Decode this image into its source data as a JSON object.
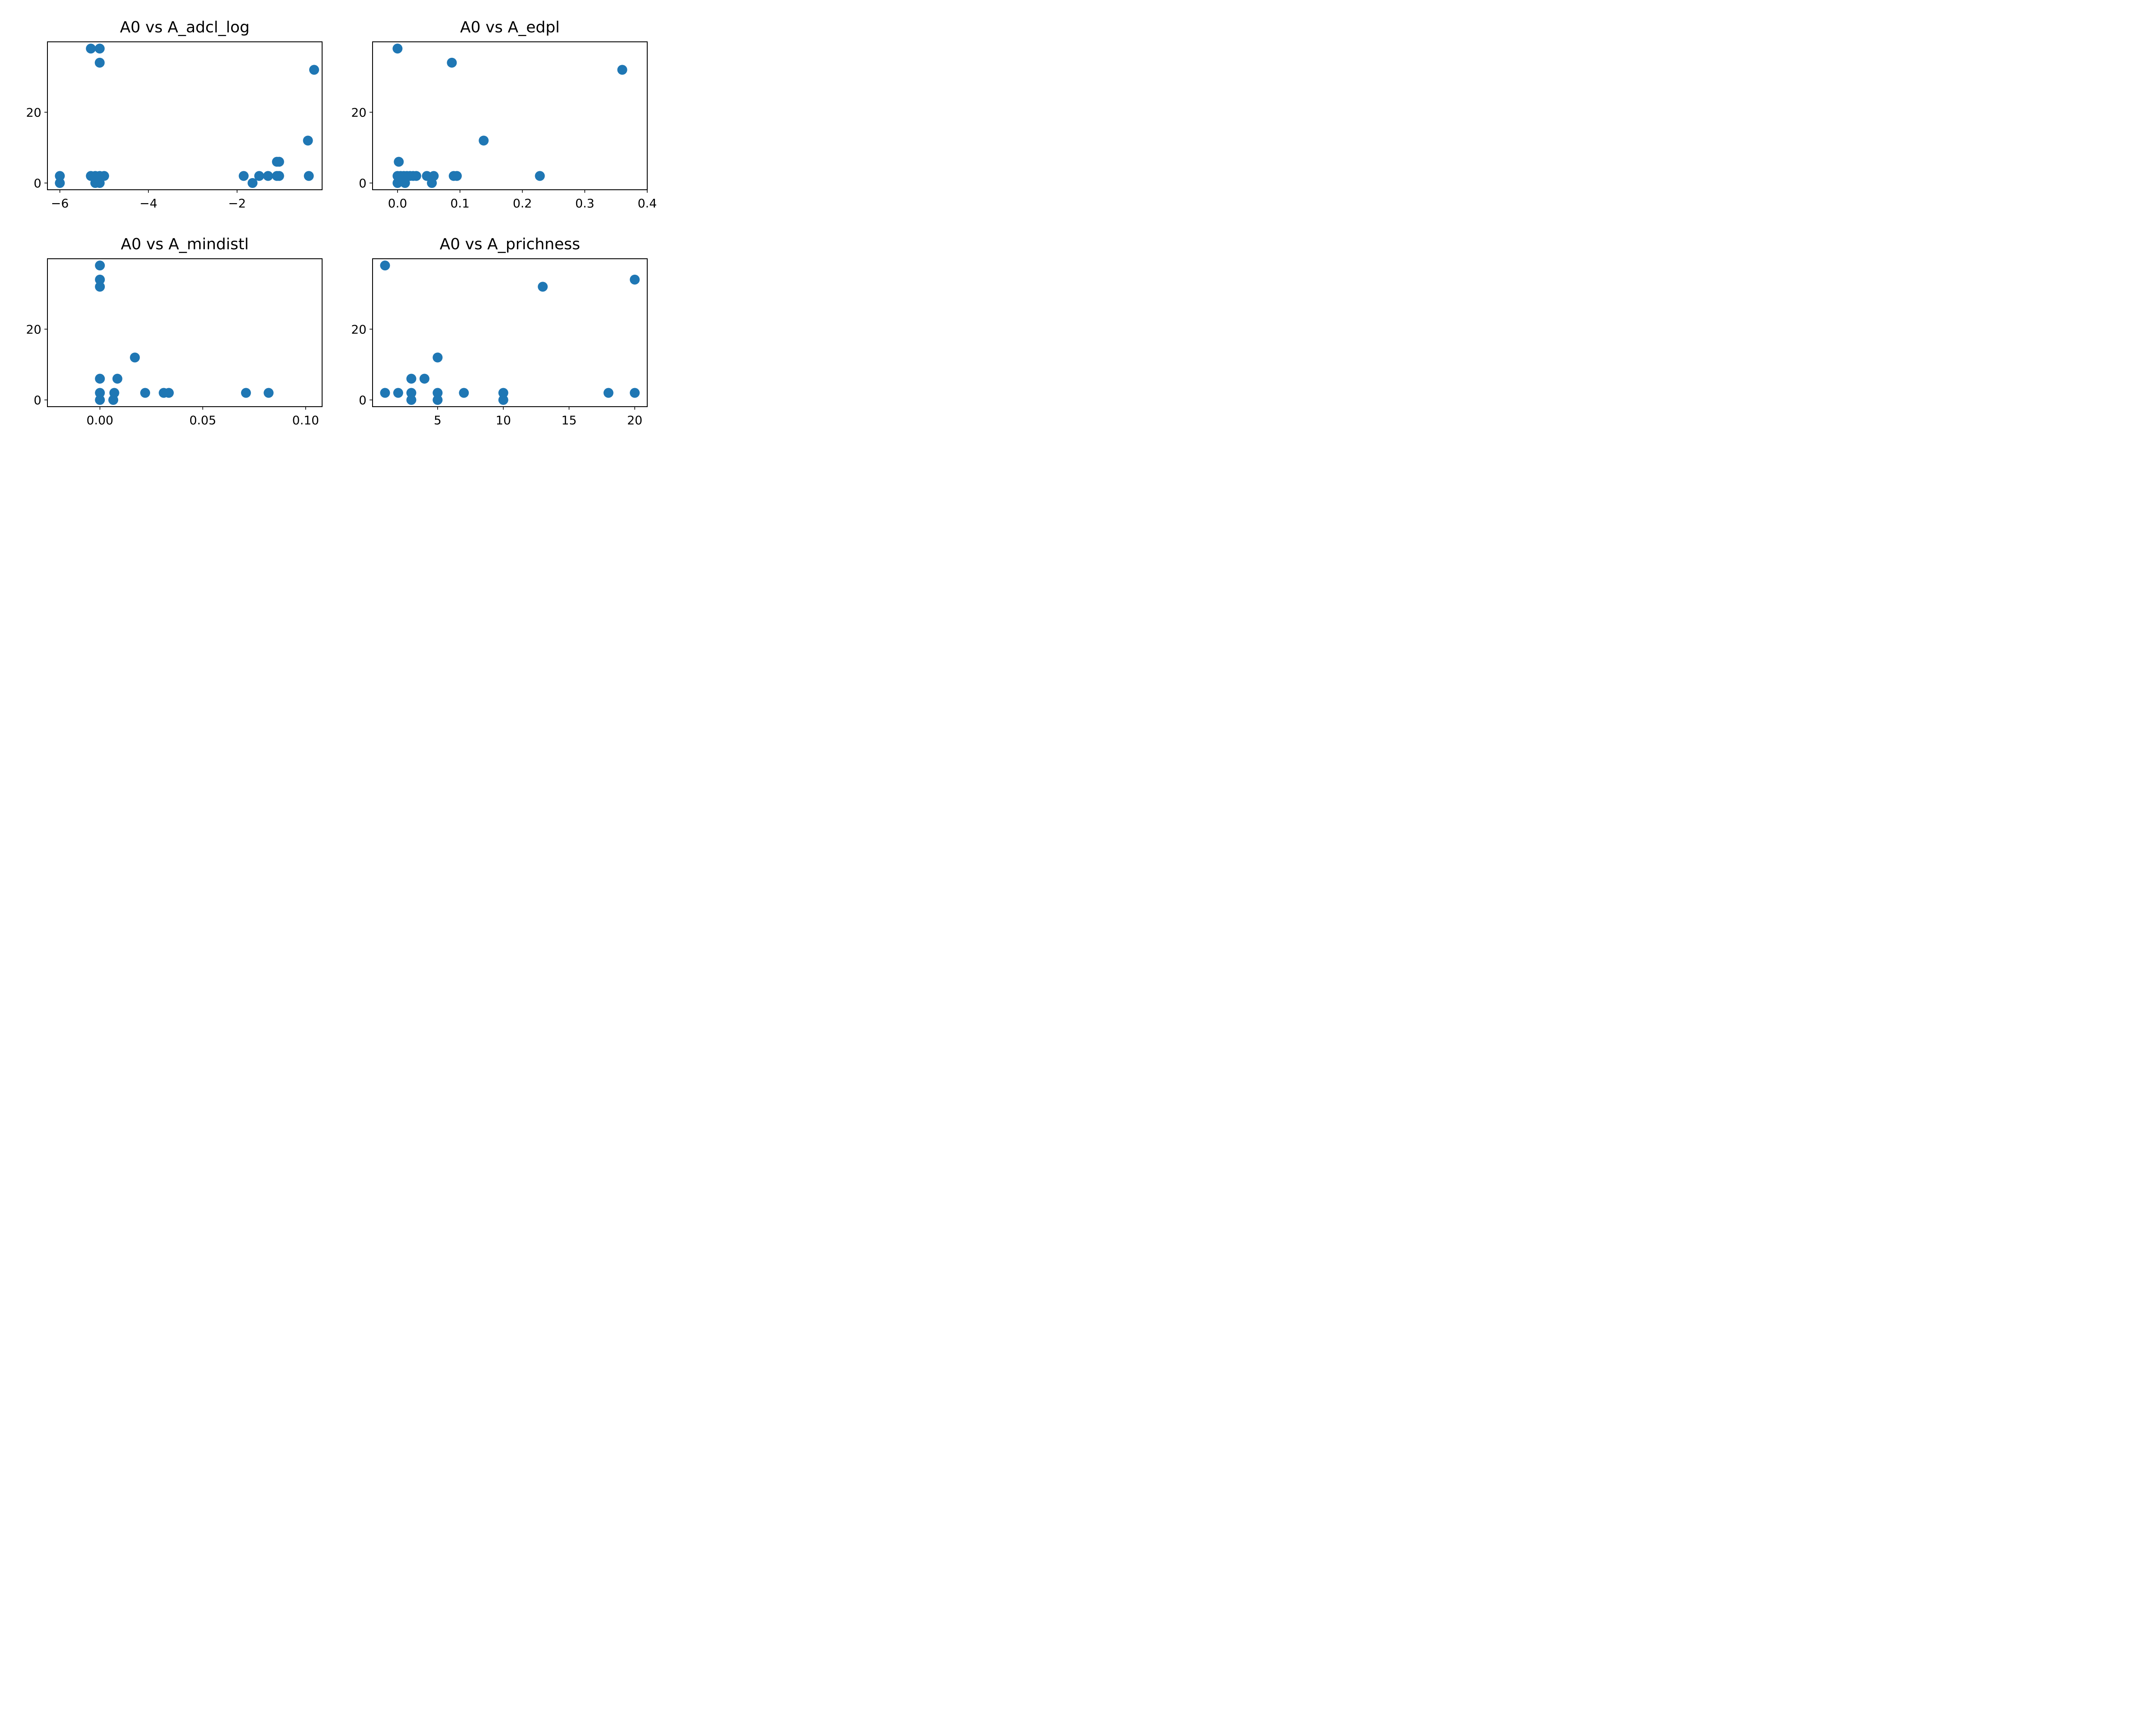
{
  "figure": {
    "background": "#ffffff"
  },
  "chart_data": [
    {
      "type": "scatter",
      "title": "A0 vs A_adcl_log",
      "xlabel": "",
      "ylabel": "",
      "color": "#1f77b4",
      "grid": false,
      "xlim": [
        -6.28,
        -0.08
      ],
      "ylim": [
        -1.9,
        39.9
      ],
      "xticks": [
        -6,
        -4,
        -2
      ],
      "xtick_labels": [
        "−6",
        "−4",
        "−2"
      ],
      "yticks": [
        0,
        20
      ],
      "ytick_labels": [
        "0",
        "20"
      ],
      "x": [
        -5.3,
        -5.1,
        -5.1,
        -0.26,
        -0.4,
        -1.1,
        -1.05,
        -0.38,
        -6.0,
        -6.0,
        -5.3,
        -5.2,
        -5.1,
        -5.0,
        -5.2,
        -5.1,
        -1.85,
        -1.65,
        -1.5,
        -1.3,
        -1.1,
        -1.05
      ],
      "y": [
        38,
        38,
        34,
        32,
        12,
        6,
        6,
        2,
        2,
        0,
        2,
        2,
        2,
        2,
        0,
        0,
        2,
        0,
        2,
        2,
        2,
        2
      ]
    },
    {
      "type": "scatter",
      "title": "A0 vs A_edpl",
      "xlabel": "",
      "ylabel": "",
      "color": "#1f77b4",
      "grid": false,
      "xlim": [
        -0.04,
        0.4
      ],
      "ylim": [
        -1.9,
        39.9
      ],
      "xticks": [
        0.0,
        0.1,
        0.2,
        0.3,
        0.4
      ],
      "xtick_labels": [
        "0.0",
        "0.1",
        "0.2",
        "0.3",
        "0.4"
      ],
      "yticks": [
        0,
        20
      ],
      "ytick_labels": [
        "0",
        "20"
      ],
      "x": [
        0.0,
        0.087,
        0.36,
        0.138,
        0.002,
        0.0,
        0.005,
        0.01,
        0.015,
        0.02,
        0.025,
        0.03,
        0.047,
        0.058,
        0.09,
        0.095,
        0.228,
        0.0,
        0.012,
        0.055
      ],
      "y": [
        38,
        34,
        32,
        12,
        6,
        2,
        2,
        2,
        2,
        2,
        2,
        2,
        2,
        2,
        2,
        2,
        2,
        0,
        0,
        0
      ]
    },
    {
      "type": "scatter",
      "title": "A0 vs A_mindistl",
      "xlabel": "",
      "ylabel": "",
      "color": "#1f77b4",
      "grid": false,
      "xlim": [
        -0.0255,
        0.108
      ],
      "ylim": [
        -1.9,
        39.9
      ],
      "xticks": [
        0.0,
        0.05,
        0.1
      ],
      "xtick_labels": [
        "0.00",
        "0.05",
        "0.10"
      ],
      "yticks": [
        0,
        20
      ],
      "ytick_labels": [
        "0",
        "20"
      ],
      "x": [
        0.0,
        0.0,
        0.0,
        0.017,
        0.0,
        0.0085,
        0.0,
        0.007,
        0.022,
        0.031,
        0.0335,
        0.071,
        0.082,
        0.0,
        0.0065
      ],
      "y": [
        38,
        34,
        32,
        12,
        6,
        6,
        2,
        2,
        2,
        2,
        2,
        2,
        2,
        0,
        0
      ]
    },
    {
      "type": "scatter",
      "title": "A0 vs A_prichness",
      "xlabel": "",
      "ylabel": "",
      "color": "#1f77b4",
      "grid": false,
      "xlim": [
        0.05,
        20.95
      ],
      "ylim": [
        -1.9,
        39.9
      ],
      "xticks": [
        5,
        10,
        15,
        20
      ],
      "xtick_labels": [
        "5",
        "10",
        "15",
        "20"
      ],
      "yticks": [
        0,
        20
      ],
      "ytick_labels": [
        "0",
        "20"
      ],
      "x": [
        1,
        20,
        13,
        5,
        3,
        4,
        1,
        2,
        3,
        5,
        7,
        10,
        18,
        20,
        3,
        5,
        10
      ],
      "y": [
        38,
        34,
        32,
        12,
        6,
        6,
        2,
        2,
        2,
        2,
        2,
        2,
        2,
        2,
        0,
        0,
        0
      ]
    }
  ]
}
